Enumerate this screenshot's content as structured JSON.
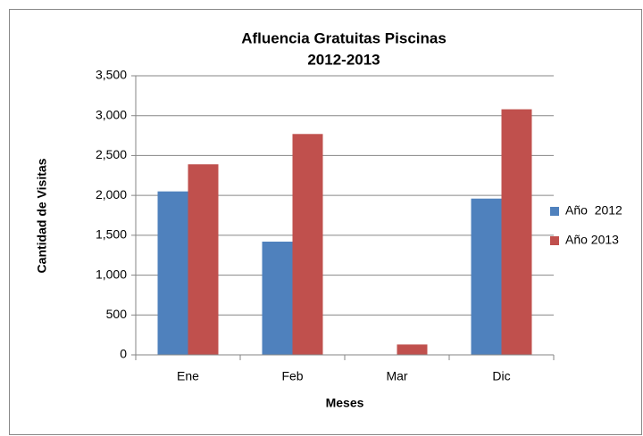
{
  "chart_data": {
    "type": "bar",
    "title": [
      "Afluencia Gratuitas Piscinas",
      "2012-2013"
    ],
    "y_label": "Cantidad de Visitas",
    "x_label": "Meses",
    "categories": [
      "Ene",
      "Feb",
      "Mar",
      "Dic"
    ],
    "series": [
      {
        "name": "Año  2012",
        "color": "#4f81bd",
        "values": [
          2050,
          1420,
          0,
          1960
        ]
      },
      {
        "name": "Año 2013",
        "color": "#c0504d",
        "values": [
          2390,
          2770,
          130,
          3080
        ]
      }
    ],
    "ylim": [
      0,
      3500
    ],
    "yticks": [
      0,
      500,
      {
        "value": 1000,
        "label": "1,000"
      },
      {
        "value": 1500,
        "label": "1,500"
      },
      {
        "value": 2000,
        "label": "2,000"
      },
      {
        "value": 2500,
        "label": "2,500"
      },
      {
        "value": 3000,
        "label": "3,000"
      },
      {
        "value": 3500,
        "label": "3,500"
      }
    ],
    "grid": true,
    "legend": "right"
  }
}
